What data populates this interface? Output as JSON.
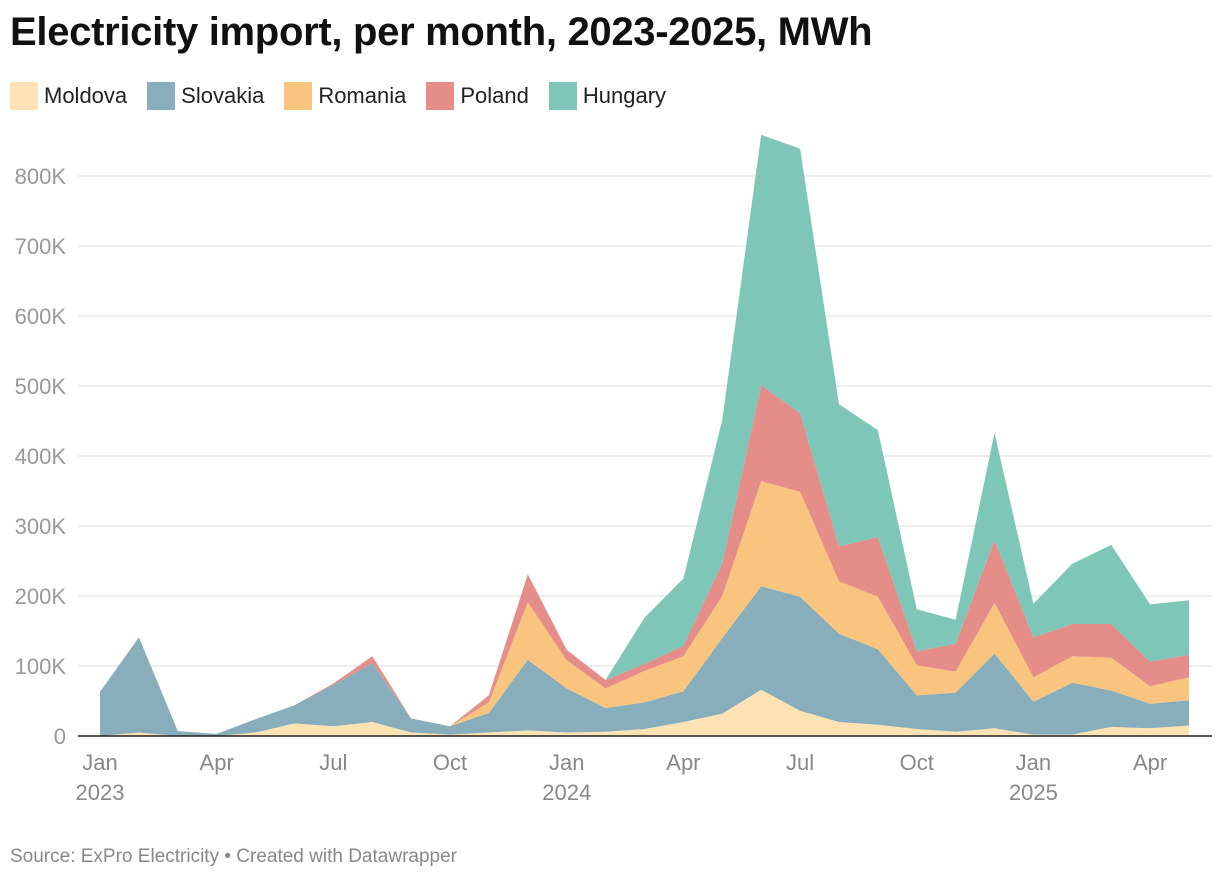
{
  "title": "Electricity import, per month, 2023-2025, MWh",
  "source": "Source: ExPro Electricity • Created with Datawrapper",
  "chart_data": {
    "type": "area",
    "stacked": true,
    "title": "Electricity import, per month, 2023-2025, MWh",
    "x": [
      "2023-01",
      "2023-02",
      "2023-03",
      "2023-04",
      "2023-05",
      "2023-06",
      "2023-07",
      "2023-08",
      "2023-09",
      "2023-10",
      "2023-11",
      "2023-12",
      "2024-01",
      "2024-02",
      "2024-03",
      "2024-04",
      "2024-05",
      "2024-06",
      "2024-07",
      "2024-08",
      "2024-09",
      "2024-10",
      "2024-11",
      "2024-12",
      "2025-01",
      "2025-02",
      "2025-03",
      "2025-04",
      "2025-05"
    ],
    "ylim": [
      0,
      860000
    ],
    "y_ticks": [
      {
        "value": 0,
        "label": "0"
      },
      {
        "value": 100000,
        "label": "100K"
      },
      {
        "value": 200000,
        "label": "200K"
      },
      {
        "value": 300000,
        "label": "300K"
      },
      {
        "value": 400000,
        "label": "400K"
      },
      {
        "value": 500000,
        "label": "500K"
      },
      {
        "value": 600000,
        "label": "600K"
      },
      {
        "value": 700000,
        "label": "700K"
      },
      {
        "value": 800000,
        "label": "800K"
      }
    ],
    "x_ticks": [
      {
        "index": 0,
        "label": "Jan",
        "year": "2023"
      },
      {
        "index": 3,
        "label": "Apr",
        "year": ""
      },
      {
        "index": 6,
        "label": "Jul",
        "year": ""
      },
      {
        "index": 9,
        "label": "Oct",
        "year": ""
      },
      {
        "index": 12,
        "label": "Jan",
        "year": "2024"
      },
      {
        "index": 15,
        "label": "Apr",
        "year": ""
      },
      {
        "index": 18,
        "label": "Jul",
        "year": ""
      },
      {
        "index": 21,
        "label": "Oct",
        "year": ""
      },
      {
        "index": 24,
        "label": "Jan",
        "year": "2025"
      },
      {
        "index": 27,
        "label": "Apr",
        "year": ""
      }
    ],
    "grid": true,
    "legend_position": "top-left",
    "series": [
      {
        "name": "Moldova",
        "color": "#fde3b4",
        "values": [
          0,
          5000,
          0,
          0,
          5000,
          18000,
          14000,
          20000,
          5000,
          2000,
          5000,
          8000,
          5000,
          6000,
          10000,
          20000,
          32000,
          66000,
          36000,
          20000,
          16000,
          10000,
          6000,
          11000,
          2000,
          2000,
          13000,
          11000,
          15000
        ]
      },
      {
        "name": "Slovakia",
        "color": "#88adbb",
        "values": [
          63000,
          136000,
          7000,
          3000,
          19000,
          26000,
          59000,
          84000,
          20000,
          12000,
          28000,
          101000,
          63000,
          34000,
          38000,
          44000,
          108000,
          148000,
          163000,
          126000,
          108000,
          48000,
          56000,
          107000,
          47000,
          74000,
          52000,
          35000,
          36000
        ]
      },
      {
        "name": "Romania",
        "color": "#f9c47e",
        "values": [
          0,
          0,
          0,
          0,
          0,
          0,
          0,
          0,
          0,
          0,
          15000,
          82000,
          40000,
          28000,
          45000,
          50000,
          60000,
          150000,
          150000,
          75000,
          75000,
          43000,
          30000,
          72000,
          35000,
          38000,
          47000,
          25000,
          33000
        ]
      },
      {
        "name": "Poland",
        "color": "#e48d89",
        "values": [
          0,
          0,
          0,
          0,
          0,
          0,
          2000,
          10000,
          0,
          0,
          10000,
          40000,
          15000,
          12000,
          10000,
          15000,
          47000,
          137000,
          112000,
          50000,
          85000,
          20000,
          40000,
          90000,
          57000,
          46000,
          48000,
          35000,
          32000
        ]
      },
      {
        "name": "Hungary",
        "color": "#7ec7b8",
        "values": [
          0,
          0,
          0,
          0,
          0,
          0,
          0,
          0,
          0,
          0,
          0,
          0,
          0,
          0,
          66000,
          96000,
          205000,
          358000,
          378000,
          203000,
          153000,
          60000,
          34000,
          153000,
          48000,
          86000,
          113000,
          82000,
          78000
        ]
      }
    ]
  }
}
